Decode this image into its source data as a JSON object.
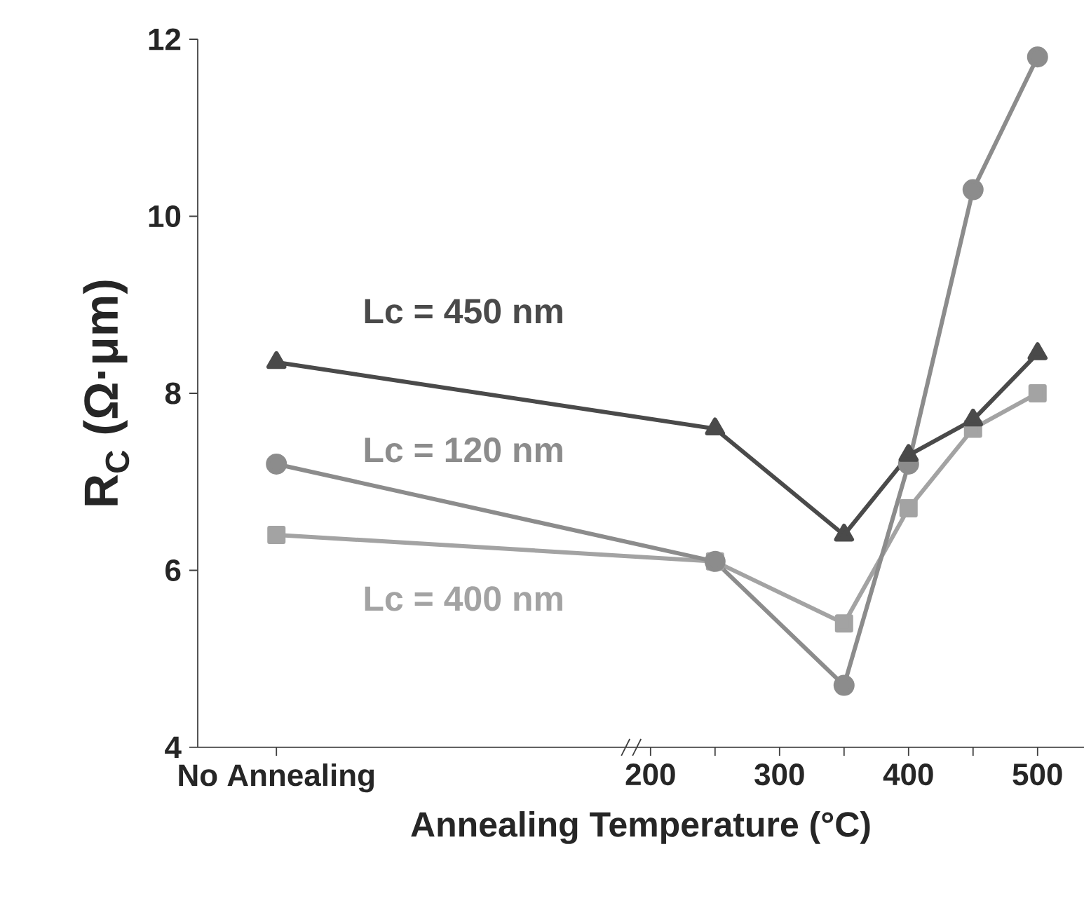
{
  "chart_data": {
    "type": "line",
    "xlabel": "Annealing Temperature (°C)",
    "ylabel": "R$_{C}$ (Ω·μm)",
    "x": [
      -90,
      250,
      350,
      400,
      450,
      500
    ],
    "series": [
      {
        "name": "Lc = 450 nm",
        "color": "#4a4a4a",
        "marker": "triangle",
        "values": [
          8.35,
          7.6,
          6.4,
          7.3,
          7.7,
          8.45
        ]
      },
      {
        "name": "Lc = 120 nm",
        "color": "#8c8c8c",
        "marker": "circle",
        "values": [
          7.2,
          6.1,
          4.7,
          7.2,
          10.3,
          11.8
        ]
      },
      {
        "name": "Lc = 400 nm",
        "color": "#a3a3a3",
        "marker": "square",
        "values": [
          6.4,
          6.1,
          5.4,
          6.7,
          7.6,
          8.0
        ]
      }
    ],
    "xlim": [
      -151,
      536
    ],
    "ylim": [
      4,
      12
    ],
    "xticks": [
      {
        "value": -90,
        "label": "No Annealing"
      },
      200,
      {
        "value": 250,
        "label": null
      },
      300,
      {
        "value": 350,
        "label": null
      },
      400,
      {
        "value": 450,
        "label": null
      },
      500
    ],
    "yticks": [
      4,
      6,
      8,
      10,
      12
    ],
    "grid": false
  }
}
